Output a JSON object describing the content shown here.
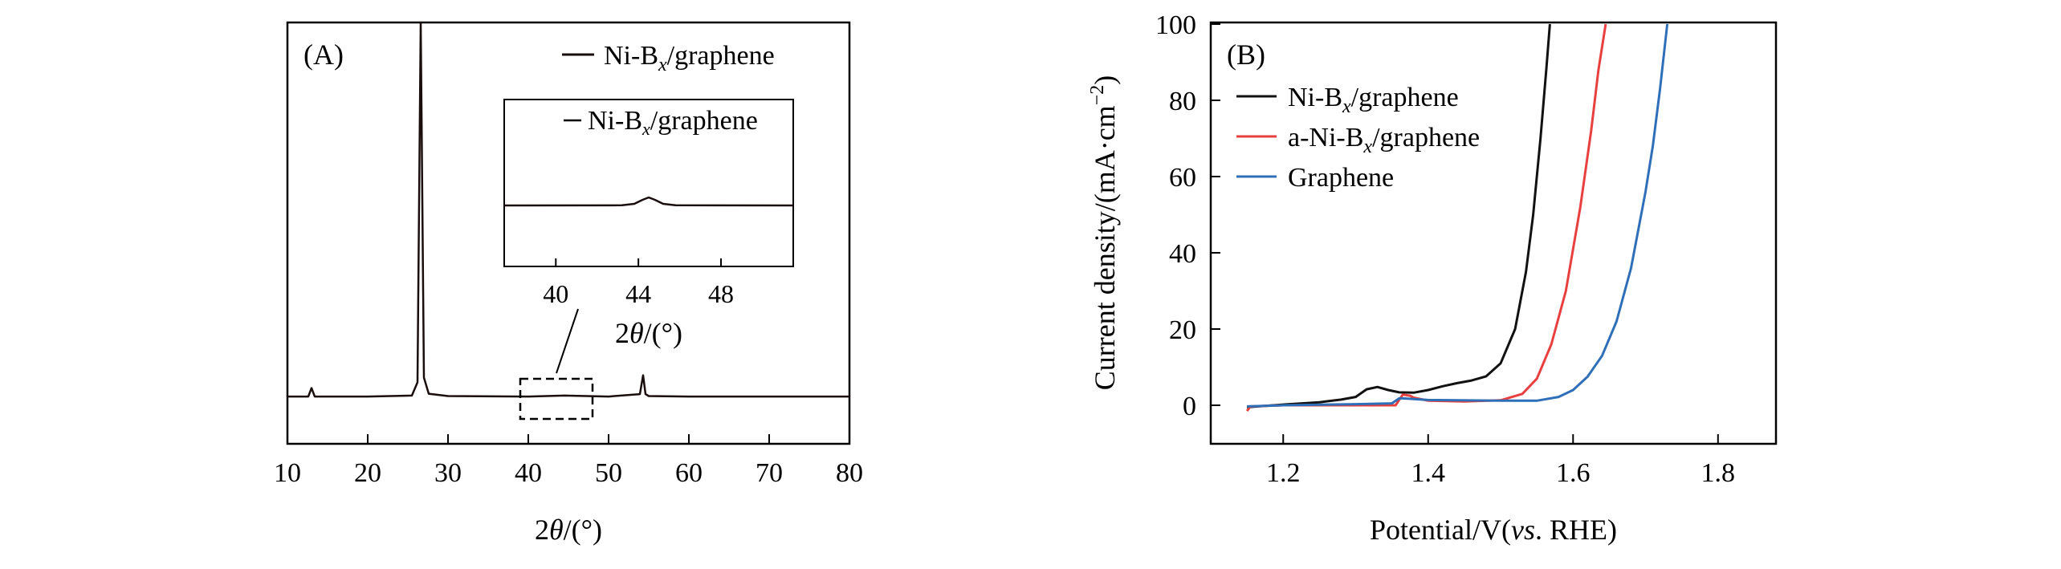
{
  "chart_data": [
    {
      "panel": "(A)",
      "type": "line",
      "title": "",
      "xlabel_prefix": "2",
      "xlabel_symbol": "θ",
      "xlabel_suffix": "/(°)",
      "ylabel": "",
      "xlim": [
        10,
        80
      ],
      "xticks": [
        "10",
        "20",
        "30",
        "40",
        "50",
        "60",
        "70",
        "80"
      ],
      "yticks_visible": false,
      "legend": {
        "position": "top-right",
        "entries": [
          {
            "base": "Ni-B",
            "sub": "x",
            "rest": "/graphene",
            "color": "#1a0d0d"
          }
        ]
      },
      "series": [
        {
          "name": "Ni-Bx/graphene",
          "color": "#1a0d0d",
          "x": [
            10,
            12.6,
            13,
            13.4,
            20,
            25.5,
            26.2,
            26.45,
            26.6,
            26.75,
            27.0,
            27.6,
            30,
            40,
            44.5,
            50,
            53.9,
            54.3,
            54.6,
            55.0,
            60,
            70,
            80
          ],
          "y": [
            1.0,
            1.0,
            2.8,
            1.0,
            1.0,
            1.2,
            4.0,
            52.0,
            80.0,
            52.0,
            5.0,
            1.6,
            1.1,
            1.0,
            1.2,
            1.0,
            1.5,
            5.5,
            1.5,
            1.1,
            1.0,
            1.0,
            1.0
          ]
        }
      ],
      "highlight_box": {
        "x_range": [
          39,
          48
        ]
      },
      "inset": {
        "xlim": [
          37.5,
          51.5
        ],
        "xticks": [
          "40",
          "44",
          "48"
        ],
        "xlabel_prefix": "2",
        "xlabel_symbol": "θ",
        "xlabel_suffix": "/(°)",
        "legend": {
          "base": "Ni-B",
          "sub": "x",
          "rest": "/graphene"
        },
        "series": {
          "x": [
            37.5,
            43.2,
            43.8,
            44.2,
            44.5,
            44.8,
            45.2,
            45.8,
            51.5
          ],
          "y": [
            0,
            0.05,
            0.4,
            1.4,
            2.0,
            1.4,
            0.4,
            0.05,
            0
          ]
        }
      }
    },
    {
      "panel": "(B)",
      "type": "line",
      "title": "",
      "xlabel_prefix": "Potential/V(",
      "xlabel_italic": "vs",
      "xlabel_suffix": ". RHE)",
      "ylabel_text": "Current density/(mA·cm",
      "ylabel_sup": "−2",
      "ylabel_close": ")",
      "xlim": [
        1.1,
        1.88
      ],
      "ylim": [
        -10,
        100
      ],
      "xticks": [
        "1.2",
        "1.4",
        "1.6",
        "1.8"
      ],
      "yticks": [
        "0",
        "20",
        "40",
        "60",
        "80",
        "100"
      ],
      "legend": {
        "position": "top-left",
        "entries": [
          {
            "base": "Ni-B",
            "sub": "x",
            "rest": "/graphene",
            "color": "#111111"
          },
          {
            "base": "a-Ni-B",
            "sub": "x",
            "rest": "/graphene",
            "color": "#e8403f"
          },
          {
            "base": "Graphene",
            "sub": "",
            "rest": "",
            "color": "#2f6fb8"
          }
        ]
      },
      "series": [
        {
          "name": "Ni-Bx/graphene",
          "color": "#111111",
          "x": [
            1.15,
            1.2,
            1.25,
            1.28,
            1.3,
            1.315,
            1.33,
            1.345,
            1.36,
            1.38,
            1.4,
            1.42,
            1.44,
            1.46,
            1.48,
            1.5,
            1.52,
            1.535,
            1.545,
            1.555,
            1.563,
            1.568
          ],
          "y": [
            -0.5,
            0.2,
            0.8,
            1.5,
            2.2,
            4.2,
            4.8,
            4.0,
            3.4,
            3.3,
            4.0,
            5.0,
            5.8,
            6.5,
            7.6,
            11,
            20,
            35,
            50,
            70,
            88,
            100
          ]
        },
        {
          "name": "a-Ni-Bx/graphene",
          "color": "#e8403f",
          "x": [
            1.15,
            1.155,
            1.2,
            1.3,
            1.355,
            1.365,
            1.375,
            1.38,
            1.4,
            1.45,
            1.5,
            1.53,
            1.55,
            1.57,
            1.59,
            1.61,
            1.625,
            1.635,
            1.645
          ],
          "y": [
            -1.5,
            -0.3,
            0,
            0,
            0,
            2.8,
            2.5,
            2.0,
            1.2,
            1.0,
            1.3,
            3,
            7,
            16,
            30,
            52,
            72,
            88,
            100
          ]
        },
        {
          "name": "Graphene",
          "color": "#2f6fb8",
          "x": [
            1.15,
            1.2,
            1.3,
            1.35,
            1.36,
            1.365,
            1.4,
            1.5,
            1.55,
            1.58,
            1.6,
            1.62,
            1.64,
            1.66,
            1.68,
            1.7,
            1.71,
            1.72,
            1.73
          ],
          "y": [
            -0.3,
            0,
            0.3,
            0.5,
            1.8,
            1.8,
            1.4,
            1.2,
            1.2,
            2.2,
            4,
            7.5,
            13,
            22,
            36,
            56,
            68,
            83,
            100
          ]
        }
      ]
    }
  ]
}
